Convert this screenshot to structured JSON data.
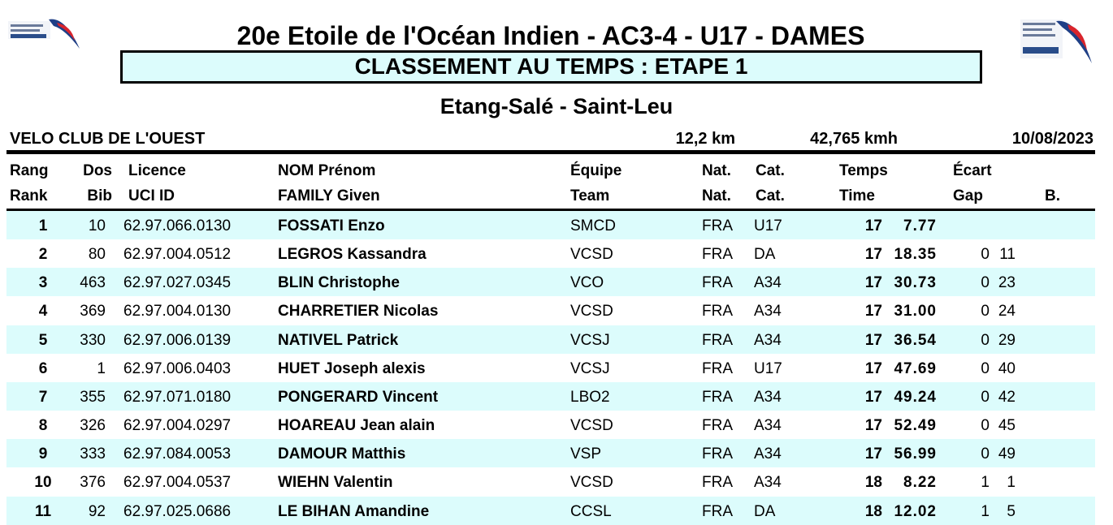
{
  "header": {
    "title": "20e Etoile de l'Océan Indien - AC3-4 - U17 - DAMES",
    "subtitle": "CLASSEMENT AU TEMPS : ETAPE 1",
    "stage": "Etang-Salé - Saint-Leu"
  },
  "info": {
    "club": "VELO CLUB DE L'OUEST",
    "distance": "12,2 km",
    "speed": "42,765 kmh",
    "date": "10/08/2023"
  },
  "table": {
    "columns": [
      {
        "fr": "Rang",
        "en": "Rank"
      },
      {
        "fr": "Dos",
        "en": "Bib"
      },
      {
        "fr": "Licence",
        "en": "UCI ID"
      },
      {
        "fr": "NOM Prénom",
        "en": "FAMILY Given"
      },
      {
        "fr": "Équipe",
        "en": "Team"
      },
      {
        "fr": "Nat.",
        "en": "Nat."
      },
      {
        "fr": "Cat.",
        "en": "Cat."
      },
      {
        "fr": "Temps",
        "en": "Time"
      },
      {
        "fr": "Écart",
        "en": "Gap"
      },
      {
        "en": "B."
      }
    ],
    "rows": [
      {
        "rank": "1",
        "bib": "10",
        "licence": "62.97.066.0130",
        "name": "FOSSATI Enzo",
        "team": "SMCD",
        "nat": "FRA",
        "cat": "U17",
        "time": [
          "17",
          "7.77"
        ]
      },
      {
        "rank": "2",
        "bib": "80",
        "licence": "62.97.004.0512",
        "name": "LEGROS Kassandra",
        "team": "VCSD",
        "nat": "FRA",
        "cat": "DA",
        "time": [
          "17",
          "18.35"
        ],
        "gap": [
          "0",
          "11"
        ]
      },
      {
        "rank": "3",
        "bib": "463",
        "licence": "62.97.027.0345",
        "name": "BLIN Christophe",
        "team": "VCO",
        "nat": "FRA",
        "cat": "A34",
        "time": [
          "17",
          "30.73"
        ],
        "gap": [
          "0",
          "23"
        ]
      },
      {
        "rank": "4",
        "bib": "369",
        "licence": "62.97.004.0130",
        "name": "CHARRETIER Nicolas",
        "team": "VCSD",
        "nat": "FRA",
        "cat": "A34",
        "time": [
          "17",
          "31.00"
        ],
        "gap": [
          "0",
          "24"
        ]
      },
      {
        "rank": "5",
        "bib": "330",
        "licence": "62.97.006.0139",
        "name": "NATIVEL Patrick",
        "team": "VCSJ",
        "nat": "FRA",
        "cat": "A34",
        "time": [
          "17",
          "36.54"
        ],
        "gap": [
          "0",
          "29"
        ]
      },
      {
        "rank": "6",
        "bib": "1",
        "licence": "62.97.006.0403",
        "name": "HUET Joseph alexis",
        "team": "VCSJ",
        "nat": "FRA",
        "cat": "U17",
        "time": [
          "17",
          "47.69"
        ],
        "gap": [
          "0",
          "40"
        ]
      },
      {
        "rank": "7",
        "bib": "355",
        "licence": "62.97.071.0180",
        "name": "PONGERARD Vincent",
        "team": "LBO2",
        "nat": "FRA",
        "cat": "A34",
        "time": [
          "17",
          "49.24"
        ],
        "gap": [
          "0",
          "42"
        ]
      },
      {
        "rank": "8",
        "bib": "326",
        "licence": "62.97.004.0297",
        "name": "HOAREAU Jean alain",
        "team": "VCSD",
        "nat": "FRA",
        "cat": "A34",
        "time": [
          "17",
          "52.49"
        ],
        "gap": [
          "0",
          "45"
        ]
      },
      {
        "rank": "9",
        "bib": "333",
        "licence": "62.97.084.0053",
        "name": "DAMOUR Matthis",
        "team": "VSP",
        "nat": "FRA",
        "cat": "A34",
        "time": [
          "17",
          "56.99"
        ],
        "gap": [
          "0",
          "49"
        ]
      },
      {
        "rank": "10",
        "bib": "376",
        "licence": "62.97.004.0537",
        "name": "WIEHN Valentin",
        "team": "VCSD",
        "nat": "FRA",
        "cat": "A34",
        "time": [
          "18",
          "8.22"
        ],
        "gap": [
          "1",
          "1"
        ]
      },
      {
        "rank": "11",
        "bib": "92",
        "licence": "62.97.025.0686",
        "name": "LE BIHAN Amandine",
        "team": "CCSL",
        "nat": "FRA",
        "cat": "DA",
        "time": [
          "18",
          "12.02"
        ],
        "gap": [
          "1",
          "5"
        ]
      }
    ]
  }
}
